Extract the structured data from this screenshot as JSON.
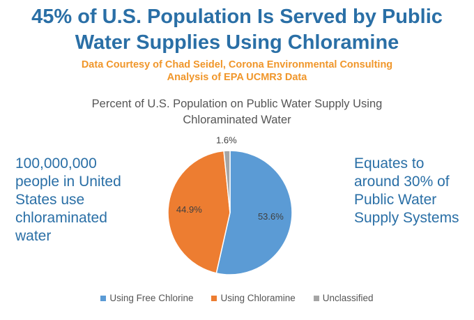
{
  "headline": [
    "45% of U.S. Population Is Served by Public",
    "Water Supplies Using Chloramine"
  ],
  "credit": [
    "Data Courtesy of Chad Seidel, Corona Environmental Consulting",
    "Analysis of EPA UCMR3 Data"
  ],
  "left_note": [
    "100,000,000",
    "people in United",
    "States use",
    "chloraminated",
    "water"
  ],
  "right_note": [
    "Equates to",
    "around 30% of",
    "Public Water",
    "Supply Systems"
  ],
  "chart_data": {
    "type": "pie",
    "title": "Percent of U.S. Population on Public Water Supply Using Chloraminated Water",
    "title_lines": [
      "Percent of U.S. Population on Public Water Supply Using",
      "Chloraminated Water"
    ],
    "categories": [
      "Using Free Chlorine",
      "Using Chloramine",
      "Unclassified"
    ],
    "values": [
      53.6,
      44.9,
      1.6
    ],
    "value_labels": [
      "53.6%",
      "44.9%",
      "1.6%"
    ],
    "colors": [
      "#5b9bd5",
      "#ed7d31",
      "#a5a5a5"
    ],
    "legend_position": "bottom"
  }
}
